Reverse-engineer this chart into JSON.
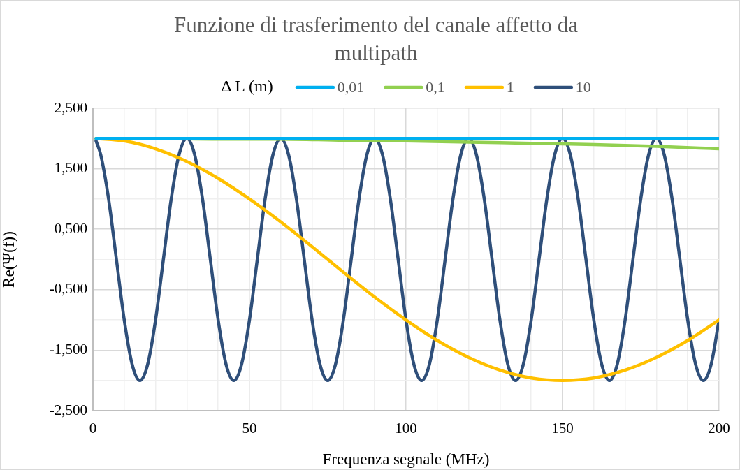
{
  "chart_data": {
    "type": "line",
    "title": "Funzione di trasferimento del canale affetto da\nmultipath",
    "xlabel": "Frequenza segnale (MHz)",
    "ylabel": "Re(Ψ(f))",
    "legend_title": "Δ L (m)",
    "legend": "top",
    "grid": true,
    "marker": "none",
    "line_style": "solid",
    "xlim": [
      0,
      200
    ],
    "ylim": [
      -2.5,
      2.5
    ],
    "xticks": [
      0,
      {
        "value": 10,
        "label": null
      },
      {
        "value": 20,
        "label": null
      },
      {
        "value": 30,
        "label": null
      },
      {
        "value": 40,
        "label": null
      },
      50,
      {
        "value": 60,
        "label": null
      },
      {
        "value": 70,
        "label": null
      },
      {
        "value": 80,
        "label": null
      },
      {
        "value": 90,
        "label": null
      },
      100,
      {
        "value": 110,
        "label": null
      },
      {
        "value": 120,
        "label": null
      },
      {
        "value": 130,
        "label": null
      },
      {
        "value": 140,
        "label": null
      },
      150,
      {
        "value": 160,
        "label": null
      },
      {
        "value": 170,
        "label": null
      },
      {
        "value": 180,
        "label": null
      },
      {
        "value": 190,
        "label": null
      },
      200
    ],
    "yticks": [
      {
        "value": -2.5,
        "label": "-2,500"
      },
      {
        "value": -2,
        "label": null
      },
      {
        "value": -1.5,
        "label": "-1,500"
      },
      {
        "value": -1,
        "label": null
      },
      {
        "value": -0.5,
        "label": "-0,500"
      },
      {
        "value": 0,
        "label": null
      },
      {
        "value": 0.5,
        "label": "0,500"
      },
      {
        "value": 1,
        "label": null
      },
      {
        "value": 1.5,
        "label": "1,500"
      },
      {
        "value": 2,
        "label": null
      },
      {
        "value": 2.5,
        "label": "2,500"
      }
    ],
    "series": [
      {
        "name": "0,01",
        "color": "#00b0f0",
        "x": [
          1,
          200
        ],
        "values": [
          2,
          2
        ]
      },
      {
        "name": "0,1",
        "color": "#92d050",
        "x": [
          1,
          20,
          40,
          60,
          80,
          100,
          120,
          140,
          160,
          180,
          200
        ],
        "values": [
          2,
          2,
          1.99,
          1.99,
          1.97,
          1.96,
          1.94,
          1.92,
          1.9,
          1.87,
          1.83
        ]
      },
      {
        "name": "1",
        "color": "#ffc000",
        "x": [
          1,
          10,
          20,
          30,
          40,
          50,
          60,
          70,
          80,
          90,
          100,
          110,
          120,
          130,
          140,
          150,
          160,
          170,
          180,
          190,
          200
        ],
        "values": [
          2,
          1.96,
          1.83,
          1.62,
          1.34,
          1,
          0.62,
          0.21,
          -0.21,
          -0.62,
          -1,
          -1.34,
          -1.62,
          -1.83,
          -1.96,
          -2,
          -1.96,
          -1.83,
          -1.62,
          -1.34,
          -1
        ]
      },
      {
        "name": "10",
        "color": "#2f4f7a",
        "x": [
          1,
          2.5,
          5,
          7.5,
          10,
          12.5,
          15,
          17.5,
          20,
          22.5,
          25,
          27.5,
          30,
          32.5,
          35,
          37.5,
          40,
          42.5,
          45,
          47.5,
          50,
          52.5,
          55,
          57.5,
          60,
          62.5,
          65,
          67.5,
          70,
          72.5,
          75,
          77.5,
          80,
          82.5,
          85,
          87.5,
          90,
          92.5,
          95,
          97.5,
          100,
          102.5,
          105,
          107.5,
          110,
          112.5,
          115,
          117.5,
          120,
          122.5,
          125,
          127.5,
          130,
          132.5,
          135,
          137.5,
          140,
          142.5,
          145,
          147.5,
          150,
          152.5,
          155,
          157.5,
          160,
          162.5,
          165,
          167.5,
          170,
          172.5,
          175,
          177.5,
          180,
          182.5,
          185,
          187.5,
          190,
          192.5,
          195,
          197.5,
          200
        ],
        "values": [
          1.96,
          1.73,
          1,
          0,
          -1,
          -1.73,
          -2,
          -1.73,
          -1,
          0,
          1,
          1.73,
          2,
          1.73,
          1,
          0,
          -1,
          -1.73,
          -2,
          -1.73,
          -1,
          0,
          1,
          1.73,
          2,
          1.73,
          1,
          0,
          -1,
          -1.73,
          -2,
          -1.73,
          -1,
          0,
          1,
          1.73,
          2,
          1.73,
          1,
          0,
          -1,
          -1.73,
          -2,
          -1.73,
          -1,
          0,
          1,
          1.73,
          2,
          1.73,
          1,
          0,
          -1,
          -1.73,
          -2,
          -1.73,
          -1,
          0,
          1,
          1.73,
          2,
          1.73,
          1,
          0,
          -1,
          -1.73,
          -2,
          -1.73,
          -1,
          0,
          1,
          1.73,
          2,
          1.73,
          1,
          0,
          -1,
          -1.73,
          -2,
          -1.73,
          -1
        ]
      }
    ]
  }
}
